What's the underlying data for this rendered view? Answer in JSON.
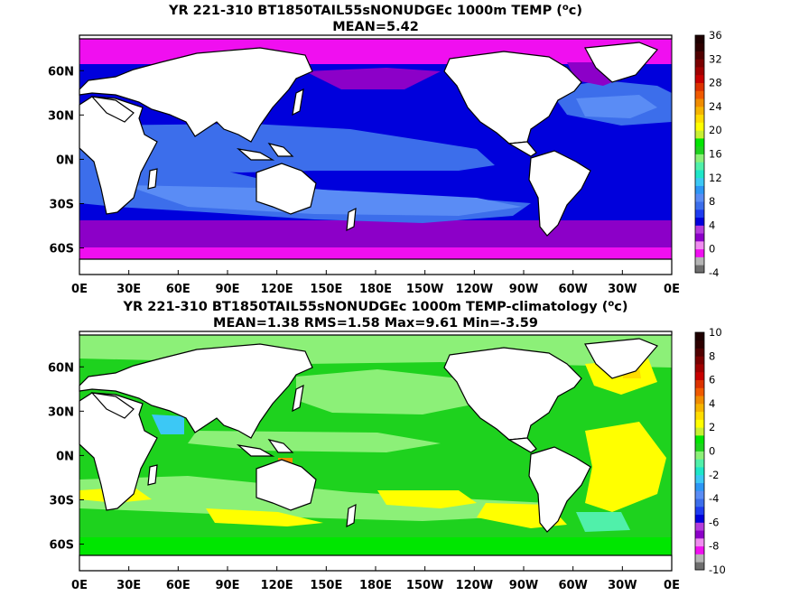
{
  "chart_data": [
    {
      "type": "heatmap",
      "title": "YR 221-310 BT1850TAIL55sNONUDGEc 1000m TEMP (",
      "title_sup": "o",
      "title_end": "c)",
      "subtitle": "MEAN=5.42",
      "x_ticks": [
        "0E",
        "30E",
        "60E",
        "90E",
        "120E",
        "150E",
        "180E",
        "150W",
        "120W",
        "90W",
        "60W",
        "30W",
        "0E"
      ],
      "y_ticks": [
        "60N",
        "30N",
        "0N",
        "30S",
        "60S"
      ],
      "colorbar": {
        "ticks": [
          "36",
          "32",
          "28",
          "24",
          "20",
          "16",
          "12",
          "8",
          "4",
          "0",
          "-4"
        ],
        "colors": [
          "#6e6e6e",
          "#b4b4b4",
          "#f00ff0",
          "#f08cf0",
          "#8c00c8",
          "#b43cdc",
          "#0000dc",
          "#1e3cf0",
          "#3c6eeb",
          "#5a8cf5",
          "#2d96f5",
          "#3cc8f5",
          "#1ee6c8",
          "#50f0aa",
          "#8cf078",
          "#1ed21e",
          "#00e600",
          "#c8f032",
          "#ffff00",
          "#ffdc00",
          "#f5b400",
          "#f08c00",
          "#f05a00",
          "#dc3200",
          "#c80000",
          "#a00000",
          "#7a0000",
          "#500000",
          "#2d0000",
          "#1e0000"
        ]
      },
      "colors": {
        "land": "#ffffff",
        "coast": "#000000"
      }
    },
    {
      "type": "heatmap",
      "title": "YR 221-310 BT1850TAIL55sNONUDGEc 1000m TEMP-climatology (",
      "title_sup": "o",
      "title_end": "c)",
      "subtitle": "MEAN=1.38   RMS=1.58   Max=9.61   Min=-3.59",
      "x_ticks": [
        "0E",
        "30E",
        "60E",
        "90E",
        "120E",
        "150E",
        "180E",
        "150W",
        "120W",
        "90W",
        "60W",
        "30W",
        "0E"
      ],
      "y_ticks": [
        "60N",
        "30N",
        "0N",
        "30S",
        "60S"
      ],
      "colorbar": {
        "ticks": [
          "10",
          "8",
          "6",
          "4",
          "2",
          "0",
          "-2",
          "-4",
          "-6",
          "-8",
          "-10"
        ],
        "colors": [
          "#6e6e6e",
          "#b4b4b4",
          "#f00ff0",
          "#f08cf0",
          "#8c00c8",
          "#b43cdc",
          "#0000dc",
          "#1e3cf0",
          "#3c6eeb",
          "#5a8cf5",
          "#2d96f5",
          "#3cc8f5",
          "#1ee6c8",
          "#50f0aa",
          "#8cf078",
          "#1ed21e",
          "#00e600",
          "#c8f032",
          "#ffff00",
          "#ffdc00",
          "#f5b400",
          "#f08c00",
          "#f05a00",
          "#dc3200",
          "#c80000",
          "#a00000",
          "#7a0000",
          "#500000",
          "#2d0000",
          "#1e0000"
        ]
      },
      "colors": {
        "land": "#ffffff",
        "coast": "#000000"
      }
    }
  ]
}
